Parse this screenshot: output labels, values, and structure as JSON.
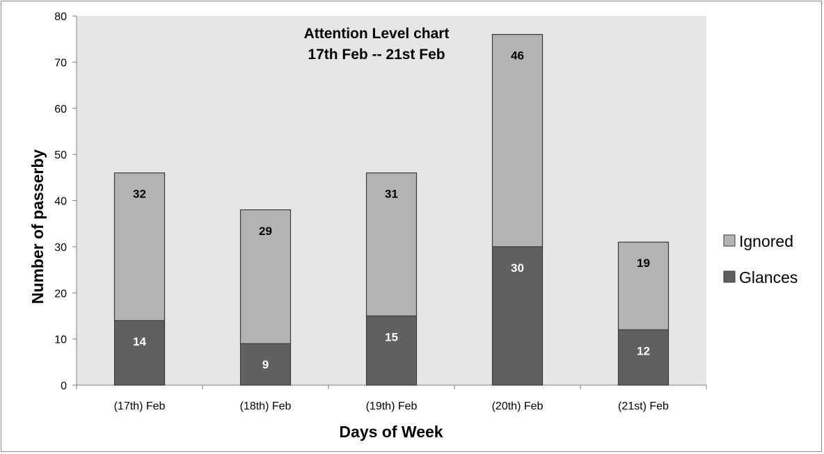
{
  "chart_data": {
    "type": "bar",
    "stacked": true,
    "title": [
      "Attention Level chart",
      "17th Feb -- 21st Feb"
    ],
    "xlabel": "Days of Week",
    "ylabel": "Number of passerby",
    "categories": [
      "(17th) Feb",
      "(18th) Feb",
      "(19th) Feb",
      "(20th) Feb",
      "(21st) Feb"
    ],
    "ylim": [
      0,
      80
    ],
    "yticks": [
      0,
      10,
      20,
      30,
      40,
      50,
      60,
      70,
      80
    ],
    "grid": false,
    "legend_position": "right",
    "plot_background": "#e6e6e6",
    "series": [
      {
        "name": "Glances",
        "values": [
          14,
          9,
          15,
          30,
          12
        ],
        "color": "#606060",
        "label_color": "#ffffff"
      },
      {
        "name": "Ignored",
        "values": [
          32,
          29,
          31,
          46,
          19
        ],
        "color": "#b3b3b3",
        "label_color": "#000000"
      }
    ],
    "legend_order": [
      "Ignored",
      "Glances"
    ]
  }
}
